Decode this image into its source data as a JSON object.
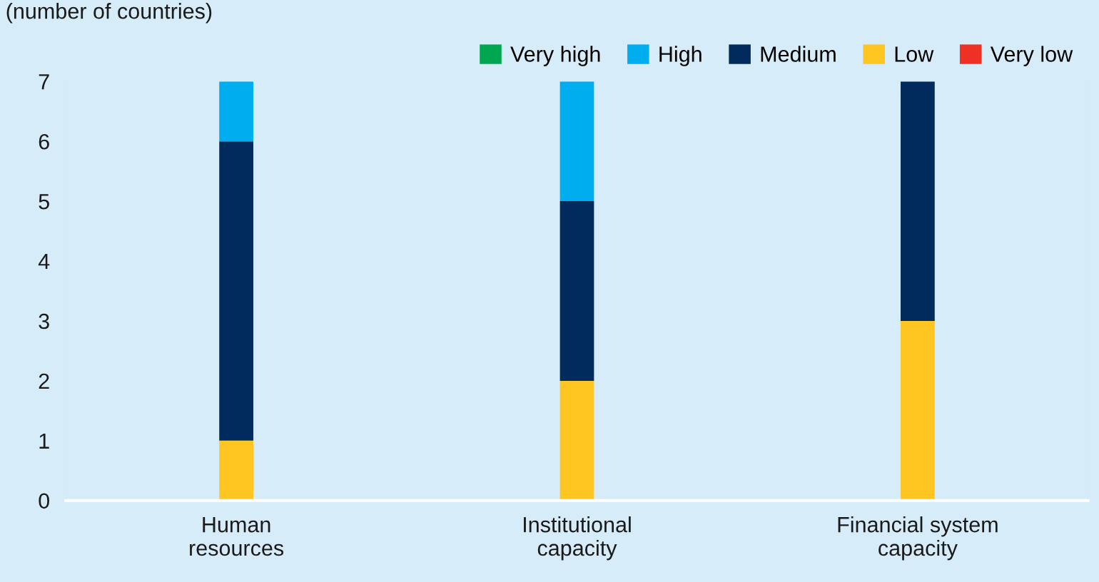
{
  "chart_data": {
    "type": "bar",
    "stacked": true,
    "subtitle": "(number of countries)",
    "categories": [
      "Human\nresources",
      "Institutional\ncapacity",
      "Financial system\ncapacity"
    ],
    "series": [
      {
        "name": "Very low",
        "color": "#ee3124",
        "values": [
          0,
          0,
          0
        ]
      },
      {
        "name": "Low",
        "color": "#ffc520",
        "values": [
          1,
          2,
          3
        ]
      },
      {
        "name": "Medium",
        "color": "#002b5c",
        "values": [
          5,
          3,
          4
        ]
      },
      {
        "name": "High",
        "color": "#00aeef",
        "values": [
          1,
          2,
          0
        ]
      },
      {
        "name": "Very high",
        "color": "#00a650",
        "values": [
          0,
          0,
          0
        ]
      }
    ],
    "ylim": [
      0,
      7
    ],
    "yticks": [
      0,
      1,
      2,
      3,
      4,
      5,
      6,
      7
    ],
    "grid": false,
    "legend": "top right"
  }
}
